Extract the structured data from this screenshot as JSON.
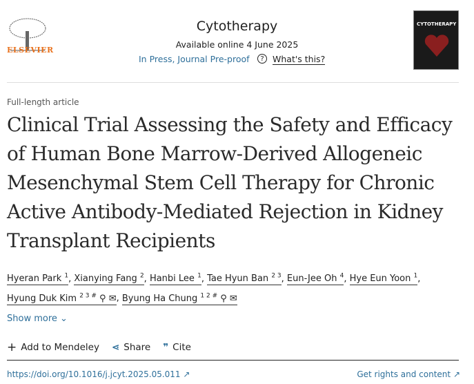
{
  "header": {
    "publisher": "ELSEVIER",
    "journal": "Cytotherapy",
    "available": "Available online 4 June 2025",
    "status": "In Press, Journal Pre-proof",
    "whats_this": "What's this?",
    "cover_title": "CYTOTHERAPY"
  },
  "article": {
    "type": "Full-length article",
    "title": "Clinical Trial Assessing the Safety and Efficacy of Human Bone Marrow-Derived Allogeneic Mesenchymal Stem Cell Therapy for Chronic Active Antibody-Mediated Rejection in Kidney Transplant Recipients",
    "authors": [
      {
        "name": "Hyeran Park",
        "sup": "1"
      },
      {
        "name": "Xianying Fang",
        "sup": "2"
      },
      {
        "name": "Hanbi Lee",
        "sup": "1"
      },
      {
        "name": "Tae Hyun Ban",
        "sup": "2 3"
      },
      {
        "name": "Eun-Jee Oh",
        "sup": "4"
      },
      {
        "name": "Hye Eun Yoon",
        "sup": "1"
      },
      {
        "name": "Hyung Duk Kim",
        "sup": "2 3 #"
      },
      {
        "name": "Byung Ha Chung",
        "sup": "1 2 #"
      }
    ],
    "show_more": "Show more"
  },
  "actions": {
    "mendeley": "Add to Mendeley",
    "share": "Share",
    "cite": "Cite"
  },
  "footer": {
    "doi": "https://doi.org/10.1016/j.jcyt.2025.05.011",
    "rights": "Get rights and content"
  },
  "colors": {
    "link": "#2e6f9a",
    "elsevier": "#e9711c"
  }
}
